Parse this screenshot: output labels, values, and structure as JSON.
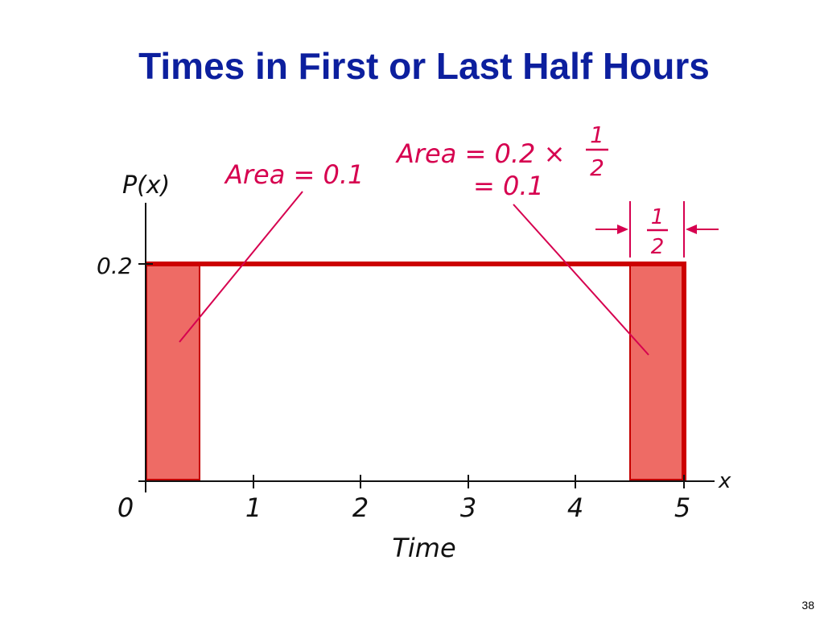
{
  "title": "Times in First or Last Half Hours",
  "page_number": "38",
  "colors": {
    "title": "#0c1f9e",
    "density_line": "#cc0000",
    "shaded_region": "#ee6b65",
    "annotation": "#d6004f",
    "axis": "#111111"
  },
  "diagram": {
    "y_axis_label": "P(x)",
    "x_axis_variable": "x",
    "x_axis_label": "Time",
    "y_tick_label": "0.2",
    "x_tick_labels": [
      "0",
      "1",
      "2",
      "3",
      "4",
      "5"
    ],
    "left_annotation": "Area = 0.1",
    "right_annotation_line1_prefix": "Area = 0.2 ×",
    "right_annotation_line2": "= 0.1",
    "fraction_numerator": "1",
    "fraction_denominator": "2",
    "width_fraction_numerator": "1",
    "width_fraction_denominator": "2"
  },
  "chart_data": {
    "type": "area",
    "x_domain": [
      0,
      5
    ],
    "density_value": 0.2,
    "shaded_intervals": [
      [
        0,
        0.5
      ],
      [
        4.5,
        5
      ]
    ],
    "shaded_areas": [
      0.1,
      0.1
    ]
  }
}
